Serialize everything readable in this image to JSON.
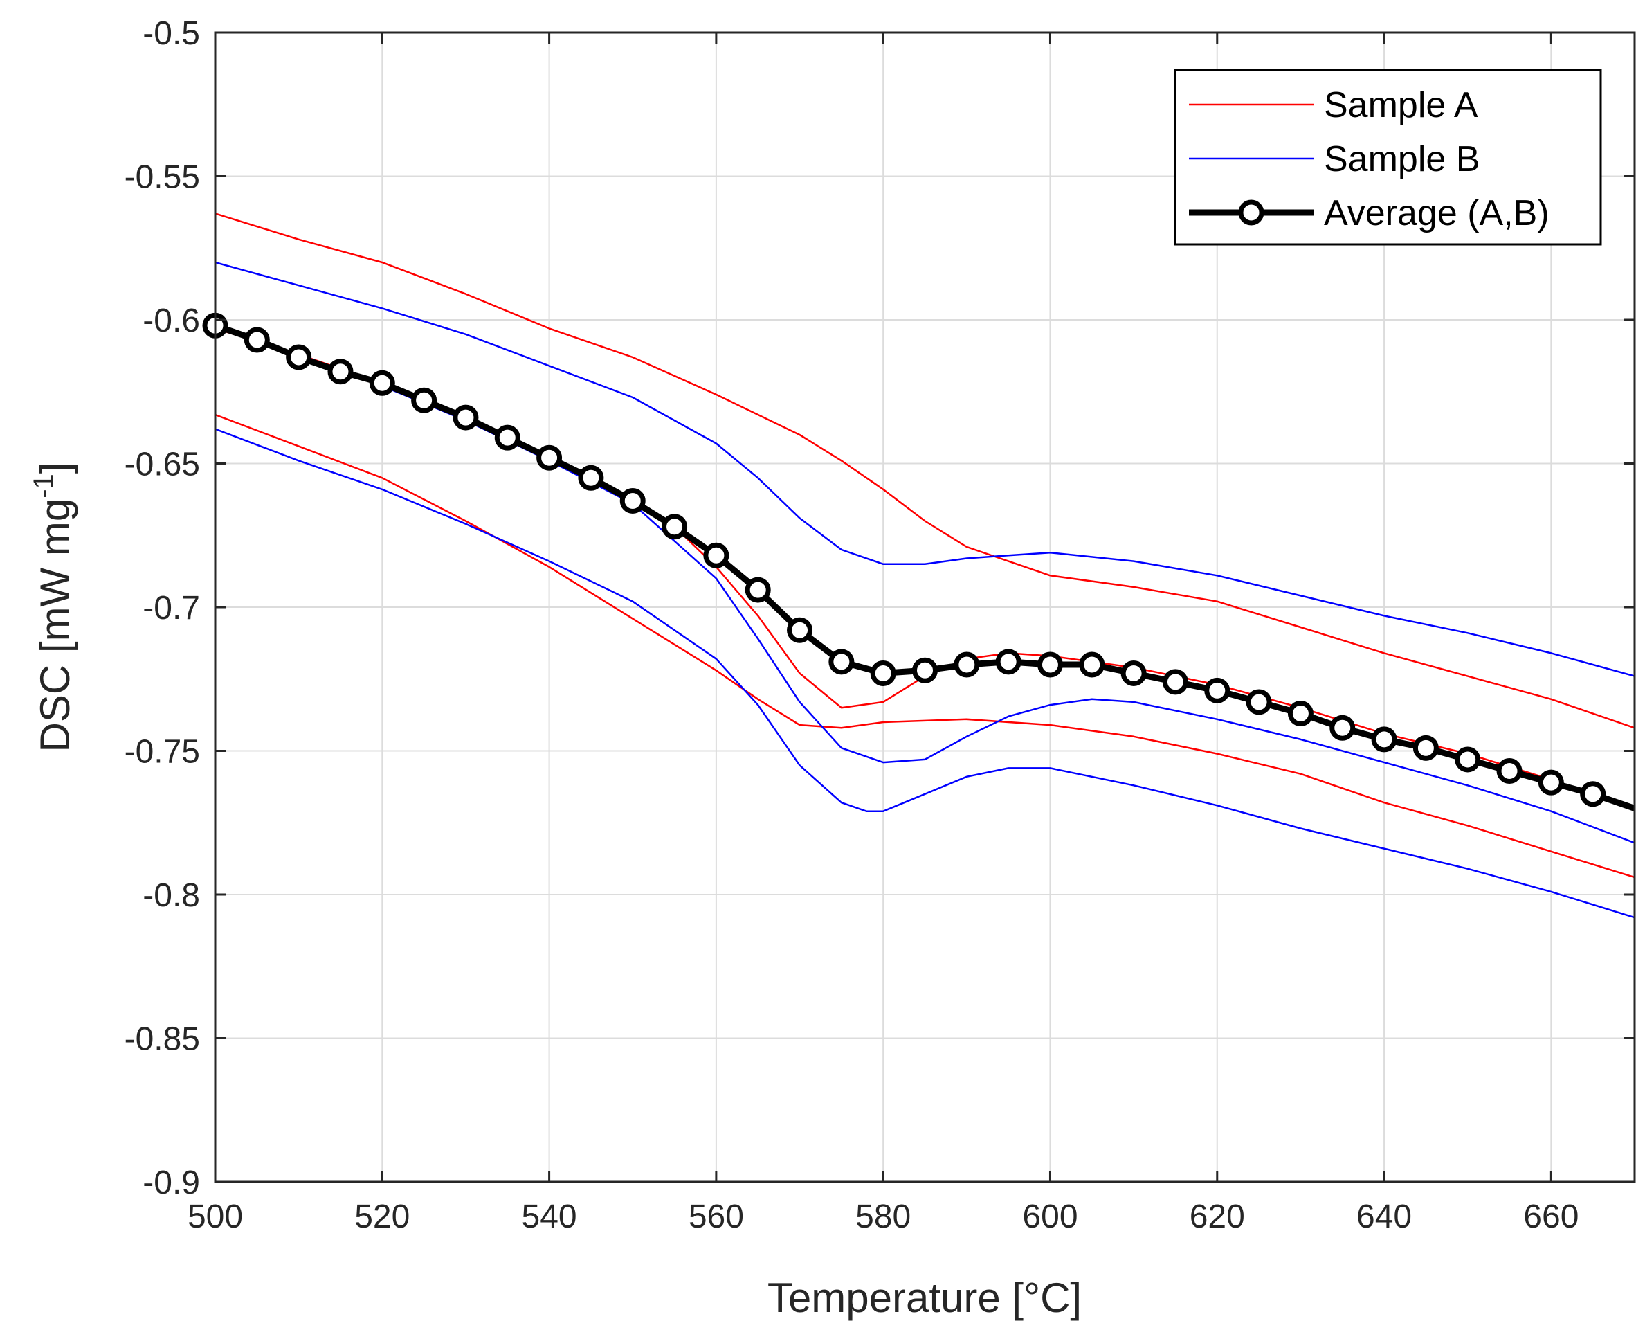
{
  "chart_data": {
    "type": "line",
    "title": "",
    "xlabel": "Temperature [°C]",
    "ylabel": "DSC [mW mg",
    "ylabel_sup": "-1",
    "ylabel_close": "]",
    "xlim": [
      500,
      670
    ],
    "ylim": [
      -0.9,
      -0.5
    ],
    "grid": true,
    "legend_position": "top-right",
    "x_ticks": [
      500,
      520,
      540,
      560,
      580,
      600,
      620,
      640,
      660
    ],
    "x_tick_labels": [
      "500",
      "520",
      "540",
      "560",
      "580",
      "600",
      "620",
      "640",
      "660"
    ],
    "y_ticks": [
      -0.5,
      -0.55,
      -0.6,
      -0.65,
      -0.7,
      -0.75,
      -0.8,
      -0.85,
      -0.9
    ],
    "y_tick_labels": [
      "-0.5",
      "-0.55",
      "-0.6",
      "-0.65",
      "-0.7",
      "-0.75",
      "-0.8",
      "-0.85",
      "-0.9"
    ],
    "series": [
      {
        "name": "Sample A",
        "legend_label": "Sample A",
        "color": "#ff0000",
        "style": "thin-line",
        "curves": [
          {
            "x": [
              500,
              510,
              520,
              530,
              540,
              550,
              560,
              570,
              575,
              580,
              585,
              590,
              595,
              600,
              610,
              620,
              630,
              640,
              650,
              660,
              670
            ],
            "y": [
              -0.563,
              -0.572,
              -0.58,
              -0.591,
              -0.603,
              -0.613,
              -0.626,
              -0.64,
              -0.649,
              -0.659,
              -0.67,
              -0.679,
              -0.684,
              -0.689,
              -0.693,
              -0.698,
              -0.707,
              -0.716,
              -0.724,
              -0.732,
              -0.742
            ]
          },
          {
            "x": [
              500,
              510,
              520,
              530,
              540,
              550,
              555,
              560,
              565,
              570,
              575,
              580,
              585,
              590,
              595,
              600,
              610,
              620,
              630,
              640,
              650,
              660,
              670
            ],
            "y": [
              -0.603,
              -0.612,
              -0.622,
              -0.634,
              -0.648,
              -0.662,
              -0.672,
              -0.686,
              -0.703,
              -0.723,
              -0.735,
              -0.733,
              -0.724,
              -0.718,
              -0.716,
              -0.717,
              -0.721,
              -0.727,
              -0.735,
              -0.744,
              -0.751,
              -0.76,
              -0.77
            ]
          },
          {
            "x": [
              500,
              510,
              520,
              530,
              540,
              550,
              560,
              565,
              570,
              575,
              580,
              590,
              600,
              610,
              620,
              630,
              640,
              650,
              660,
              670
            ],
            "y": [
              -0.633,
              -0.644,
              -0.655,
              -0.67,
              -0.686,
              -0.704,
              -0.722,
              -0.732,
              -0.741,
              -0.742,
              -0.74,
              -0.739,
              -0.741,
              -0.745,
              -0.751,
              -0.758,
              -0.768,
              -0.776,
              -0.785,
              -0.794
            ]
          }
        ]
      },
      {
        "name": "Sample B",
        "legend_label": "Sample B",
        "color": "#0000ff",
        "style": "thin-line",
        "curves": [
          {
            "x": [
              500,
              510,
              520,
              530,
              540,
              550,
              560,
              565,
              570,
              575,
              580,
              585,
              590,
              595,
              600,
              610,
              620,
              630,
              640,
              650,
              660,
              670
            ],
            "y": [
              -0.58,
              -0.588,
              -0.596,
              -0.605,
              -0.616,
              -0.627,
              -0.643,
              -0.655,
              -0.669,
              -0.68,
              -0.685,
              -0.685,
              -0.683,
              -0.682,
              -0.681,
              -0.684,
              -0.689,
              -0.696,
              -0.703,
              -0.709,
              -0.716,
              -0.724
            ]
          },
          {
            "x": [
              500,
              510,
              520,
              530,
              540,
              550,
              560,
              565,
              570,
              575,
              580,
              585,
              590,
              595,
              600,
              605,
              610,
              620,
              630,
              640,
              650,
              660,
              670
            ],
            "y": [
              -0.602,
              -0.612,
              -0.623,
              -0.635,
              -0.649,
              -0.664,
              -0.69,
              -0.711,
              -0.733,
              -0.749,
              -0.754,
              -0.753,
              -0.745,
              -0.738,
              -0.734,
              -0.732,
              -0.733,
              -0.739,
              -0.746,
              -0.754,
              -0.762,
              -0.771,
              -0.782
            ]
          },
          {
            "x": [
              500,
              510,
              520,
              530,
              540,
              550,
              560,
              565,
              570,
              575,
              578,
              580,
              585,
              590,
              595,
              600,
              610,
              620,
              630,
              640,
              650,
              660,
              670
            ],
            "y": [
              -0.638,
              -0.649,
              -0.659,
              -0.671,
              -0.684,
              -0.698,
              -0.718,
              -0.734,
              -0.755,
              -0.768,
              -0.771,
              -0.771,
              -0.765,
              -0.759,
              -0.756,
              -0.756,
              -0.762,
              -0.769,
              -0.777,
              -0.784,
              -0.791,
              -0.799,
              -0.808
            ]
          }
        ]
      },
      {
        "name": "Average (A,B)",
        "legend_label": "Average (A,B)",
        "color": "#000000",
        "style": "thick-line-circle-markers",
        "x": [
          500,
          505,
          510,
          515,
          520,
          525,
          530,
          535,
          540,
          545,
          550,
          555,
          560,
          565,
          570,
          575,
          580,
          585,
          590,
          595,
          600,
          605,
          610,
          615,
          620,
          625,
          630,
          635,
          640,
          645,
          650,
          655,
          660,
          665,
          670
        ],
        "y": [
          -0.602,
          -0.607,
          -0.613,
          -0.618,
          -0.622,
          -0.628,
          -0.634,
          -0.641,
          -0.648,
          -0.655,
          -0.663,
          -0.672,
          -0.682,
          -0.694,
          -0.708,
          -0.719,
          -0.723,
          -0.722,
          -0.72,
          -0.719,
          -0.72,
          -0.72,
          -0.723,
          -0.726,
          -0.729,
          -0.733,
          -0.737,
          -0.742,
          -0.746,
          -0.749,
          -0.753,
          -0.757,
          -0.761,
          -0.765,
          -0.77
        ]
      }
    ]
  }
}
